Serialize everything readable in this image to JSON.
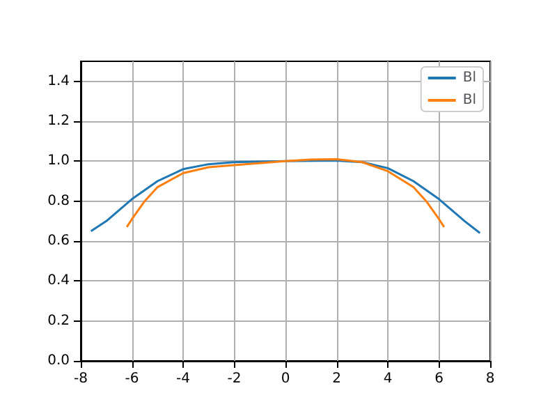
{
  "chart_data": {
    "type": "line",
    "xlim": [
      -8,
      8
    ],
    "xticks": [
      -8,
      -6,
      -4,
      -2,
      0,
      2,
      4,
      6,
      8
    ],
    "ylim": [
      0,
      1.5
    ],
    "yticks": [
      {
        "value": 0,
        "label": "0.0"
      },
      0.2,
      0.4,
      0.6,
      0.8,
      {
        "value": 1,
        "label": "1.0"
      },
      1.2,
      1.4
    ],
    "grid": true,
    "legend": "top right",
    "marker": "none",
    "series": [
      {
        "name": "Bl",
        "color": "#1f77b4",
        "x": [
          -7.6,
          -7,
          -6,
          -5,
          -4,
          -3,
          -2,
          0,
          2,
          3,
          4,
          5,
          6,
          7,
          7.6
        ],
        "values": [
          0.65,
          0.7,
          0.81,
          0.9,
          0.96,
          0.985,
          0.995,
          1.0,
          1.003,
          0.995,
          0.965,
          0.9,
          0.81,
          0.7,
          0.64
        ]
      },
      {
        "name": "Bl",
        "color": "#ff7f0e",
        "x": [
          -6.2,
          -6,
          -5.5,
          -5,
          -4,
          -3,
          -2,
          0,
          1,
          2,
          3,
          4,
          5,
          5.5,
          6,
          6.2
        ],
        "values": [
          0.67,
          0.71,
          0.8,
          0.87,
          0.94,
          0.97,
          0.98,
          1.0,
          1.008,
          1.01,
          0.995,
          0.95,
          0.87,
          0.8,
          0.71,
          0.67
        ]
      }
    ]
  }
}
